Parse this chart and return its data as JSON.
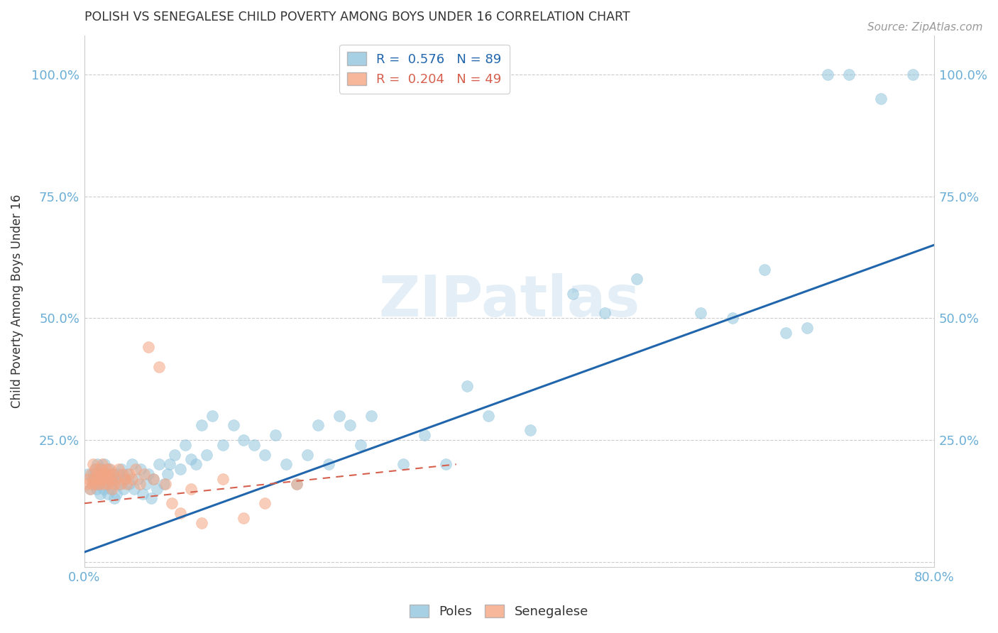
{
  "title": "POLISH VS SENEGALESE CHILD POVERTY AMONG BOYS UNDER 16 CORRELATION CHART",
  "source": "Source: ZipAtlas.com",
  "ylabel": "Child Poverty Among Boys Under 16",
  "xlim": [
    0,
    0.8
  ],
  "ylim": [
    -0.01,
    1.08
  ],
  "yticks": [
    0.0,
    0.25,
    0.5,
    0.75,
    1.0
  ],
  "ytick_labels_left": [
    "",
    "25.0%",
    "50.0%",
    "75.0%",
    "100.0%"
  ],
  "ytick_labels_right": [
    "",
    "25.0%",
    "50.0%",
    "75.0%",
    "100.0%"
  ],
  "xticks": [
    0.0,
    0.1,
    0.2,
    0.3,
    0.4,
    0.5,
    0.6,
    0.7,
    0.8
  ],
  "xtick_labels": [
    "0.0%",
    "",
    "",
    "",
    "",
    "",
    "",
    "",
    "80.0%"
  ],
  "blue_color": "#92c5de",
  "pink_color": "#f4a582",
  "trend_blue_color": "#2166ac",
  "trend_pink_color": "#d6604d",
  "bg_color": "#ffffff",
  "grid_color": "#cccccc",
  "axis_color": "#cccccc",
  "title_color": "#333333",
  "label_color": "#6baed6",
  "legend_blue_label": "R =  0.576   N = 89",
  "legend_pink_label": "R =  0.204   N = 49",
  "poles_label": "Poles",
  "senegalese_label": "Senegalese",
  "blue_trend_x0": 0.0,
  "blue_trend_y0": 0.02,
  "blue_trend_x1": 0.8,
  "blue_trend_y1": 0.65,
  "pink_trend_x0": 0.0,
  "pink_trend_y0": 0.12,
  "pink_trend_x1": 0.35,
  "pink_trend_y1": 0.2,
  "blue_scatter_x": [
    0.003,
    0.005,
    0.007,
    0.008,
    0.009,
    0.01,
    0.01,
    0.011,
    0.012,
    0.013,
    0.014,
    0.015,
    0.016,
    0.017,
    0.018,
    0.019,
    0.02,
    0.021,
    0.022,
    0.023,
    0.024,
    0.025,
    0.026,
    0.027,
    0.028,
    0.029,
    0.03,
    0.032,
    0.033,
    0.035,
    0.037,
    0.038,
    0.04,
    0.042,
    0.045,
    0.047,
    0.05,
    0.053,
    0.055,
    0.058,
    0.06,
    0.063,
    0.065,
    0.068,
    0.07,
    0.075,
    0.078,
    0.08,
    0.085,
    0.09,
    0.095,
    0.1,
    0.105,
    0.11,
    0.115,
    0.12,
    0.13,
    0.14,
    0.15,
    0.16,
    0.17,
    0.18,
    0.19,
    0.2,
    0.21,
    0.22,
    0.23,
    0.24,
    0.25,
    0.26,
    0.27,
    0.3,
    0.32,
    0.34,
    0.36,
    0.38,
    0.42,
    0.46,
    0.49,
    0.52,
    0.58,
    0.61,
    0.64,
    0.66,
    0.68,
    0.7,
    0.72,
    0.75,
    0.78
  ],
  "blue_scatter_y": [
    0.18,
    0.15,
    0.17,
    0.18,
    0.16,
    0.17,
    0.19,
    0.15,
    0.2,
    0.16,
    0.18,
    0.14,
    0.19,
    0.17,
    0.15,
    0.2,
    0.16,
    0.18,
    0.14,
    0.19,
    0.17,
    0.15,
    0.16,
    0.18,
    0.13,
    0.17,
    0.14,
    0.18,
    0.16,
    0.19,
    0.15,
    0.17,
    0.18,
    0.16,
    0.2,
    0.15,
    0.17,
    0.19,
    0.14,
    0.16,
    0.18,
    0.13,
    0.17,
    0.15,
    0.2,
    0.16,
    0.18,
    0.2,
    0.22,
    0.19,
    0.24,
    0.21,
    0.2,
    0.28,
    0.22,
    0.3,
    0.24,
    0.28,
    0.25,
    0.24,
    0.22,
    0.26,
    0.2,
    0.16,
    0.22,
    0.28,
    0.2,
    0.3,
    0.28,
    0.24,
    0.3,
    0.2,
    0.26,
    0.2,
    0.36,
    0.3,
    0.27,
    0.55,
    0.51,
    0.58,
    0.51,
    0.5,
    0.6,
    0.47,
    0.48,
    1.0,
    1.0,
    0.95,
    1.0
  ],
  "pink_scatter_x": [
    0.002,
    0.004,
    0.005,
    0.006,
    0.007,
    0.008,
    0.009,
    0.01,
    0.011,
    0.012,
    0.013,
    0.014,
    0.015,
    0.016,
    0.017,
    0.018,
    0.019,
    0.02,
    0.021,
    0.022,
    0.023,
    0.024,
    0.025,
    0.026,
    0.027,
    0.028,
    0.03,
    0.032,
    0.034,
    0.036,
    0.038,
    0.04,
    0.042,
    0.045,
    0.048,
    0.052,
    0.056,
    0.06,
    0.065,
    0.07,
    0.076,
    0.082,
    0.09,
    0.1,
    0.11,
    0.13,
    0.15,
    0.17,
    0.2
  ],
  "pink_scatter_y": [
    0.16,
    0.17,
    0.15,
    0.18,
    0.16,
    0.2,
    0.17,
    0.19,
    0.16,
    0.18,
    0.17,
    0.16,
    0.19,
    0.18,
    0.2,
    0.16,
    0.18,
    0.17,
    0.19,
    0.16,
    0.18,
    0.19,
    0.17,
    0.15,
    0.18,
    0.16,
    0.17,
    0.19,
    0.16,
    0.18,
    0.17,
    0.16,
    0.18,
    0.17,
    0.19,
    0.16,
    0.18,
    0.44,
    0.17,
    0.4,
    0.16,
    0.12,
    0.1,
    0.15,
    0.08,
    0.17,
    0.09,
    0.12,
    0.16
  ]
}
